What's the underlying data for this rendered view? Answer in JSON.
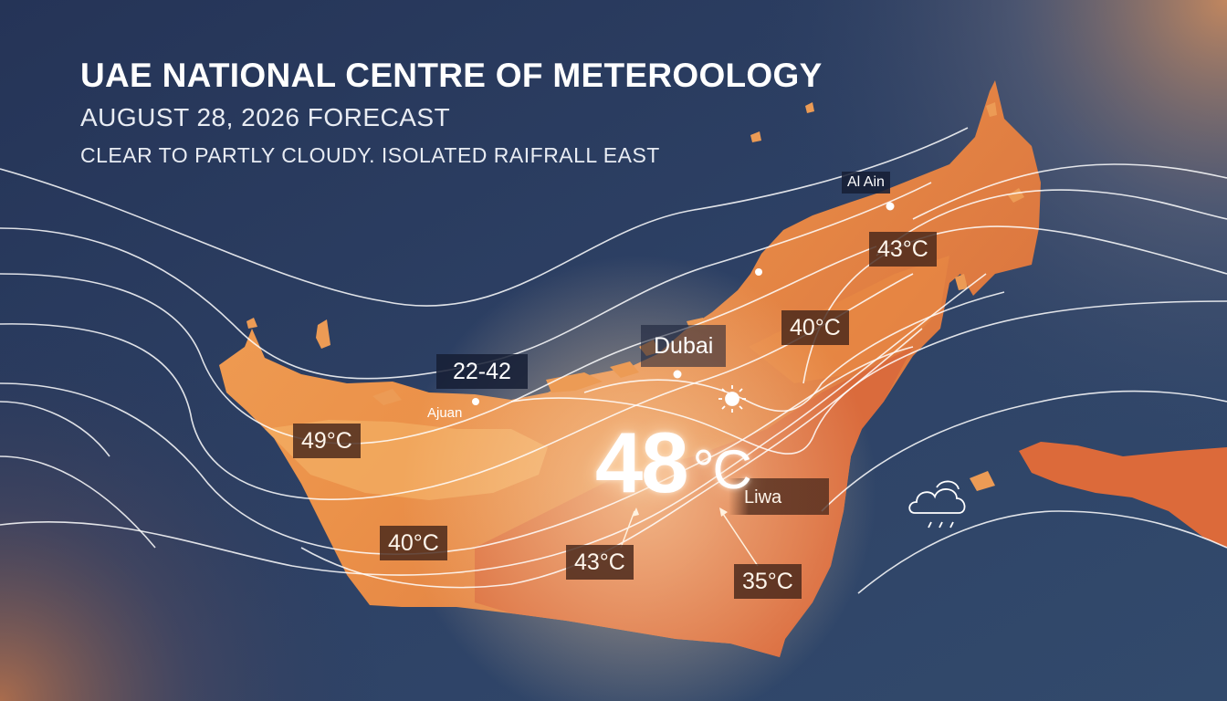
{
  "header": {
    "title": "UAE NATIONAL CENTRE OF METEROOLOGY",
    "date": "AUGUST 28, 2026 FORECAST",
    "conditions": "CLEAR TO PARTLY CLOUDY. ISOLATED RAIFRALL EAST"
  },
  "cities": {
    "al_ain": "Al Ain",
    "dubai": "Dubai",
    "ajman": "Ajuan",
    "liwa": "Liwa"
  },
  "labels": {
    "range": "22-42",
    "t_al_ain": "43°C",
    "t_east": "40°C",
    "t_west": "49°C",
    "t_southwest": "40°C",
    "t_south": "43°C",
    "t_southeast": "35°C",
    "t_big_value": "48",
    "t_big_unit": "°C"
  },
  "icons": [
    "sun-icon",
    "rain-cloud-icon"
  ],
  "colors": {
    "background_dark": "#23345a",
    "land_orange": "#e98a45",
    "land_deep": "#d2643a",
    "label_bg": "#46261a"
  }
}
